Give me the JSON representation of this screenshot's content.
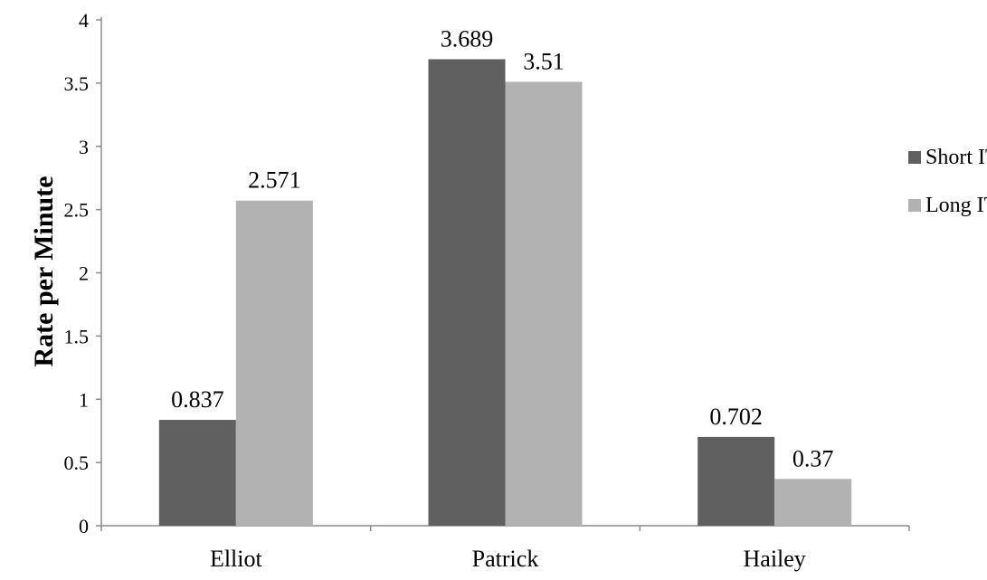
{
  "chart_data": {
    "type": "bar",
    "title": "",
    "xlabel": "",
    "ylabel": "Rate per Minute",
    "categories": [
      "Elliot",
      "Patrick",
      "Hailey"
    ],
    "series": [
      {
        "name": "Short ITI",
        "values": [
          0.837,
          3.689,
          0.702
        ],
        "value_labels": [
          "0.837",
          "3.689",
          "0.702"
        ],
        "color": "#606060"
      },
      {
        "name": "Long ITI",
        "values": [
          2.571,
          3.51,
          0.37
        ],
        "value_labels": [
          "2.571",
          "3.51",
          "0.37"
        ],
        "color": "#b2b2b2"
      }
    ],
    "ylim": [
      0,
      4
    ],
    "yticks": [
      0,
      0.5,
      1,
      1.5,
      2,
      2.5,
      3,
      3.5,
      4
    ],
    "ytick_labels": [
      "0",
      "0.5",
      "1",
      "1.5",
      "2",
      "2.5",
      "3",
      "3.5",
      "4"
    ],
    "grid": false,
    "legend": "right"
  }
}
